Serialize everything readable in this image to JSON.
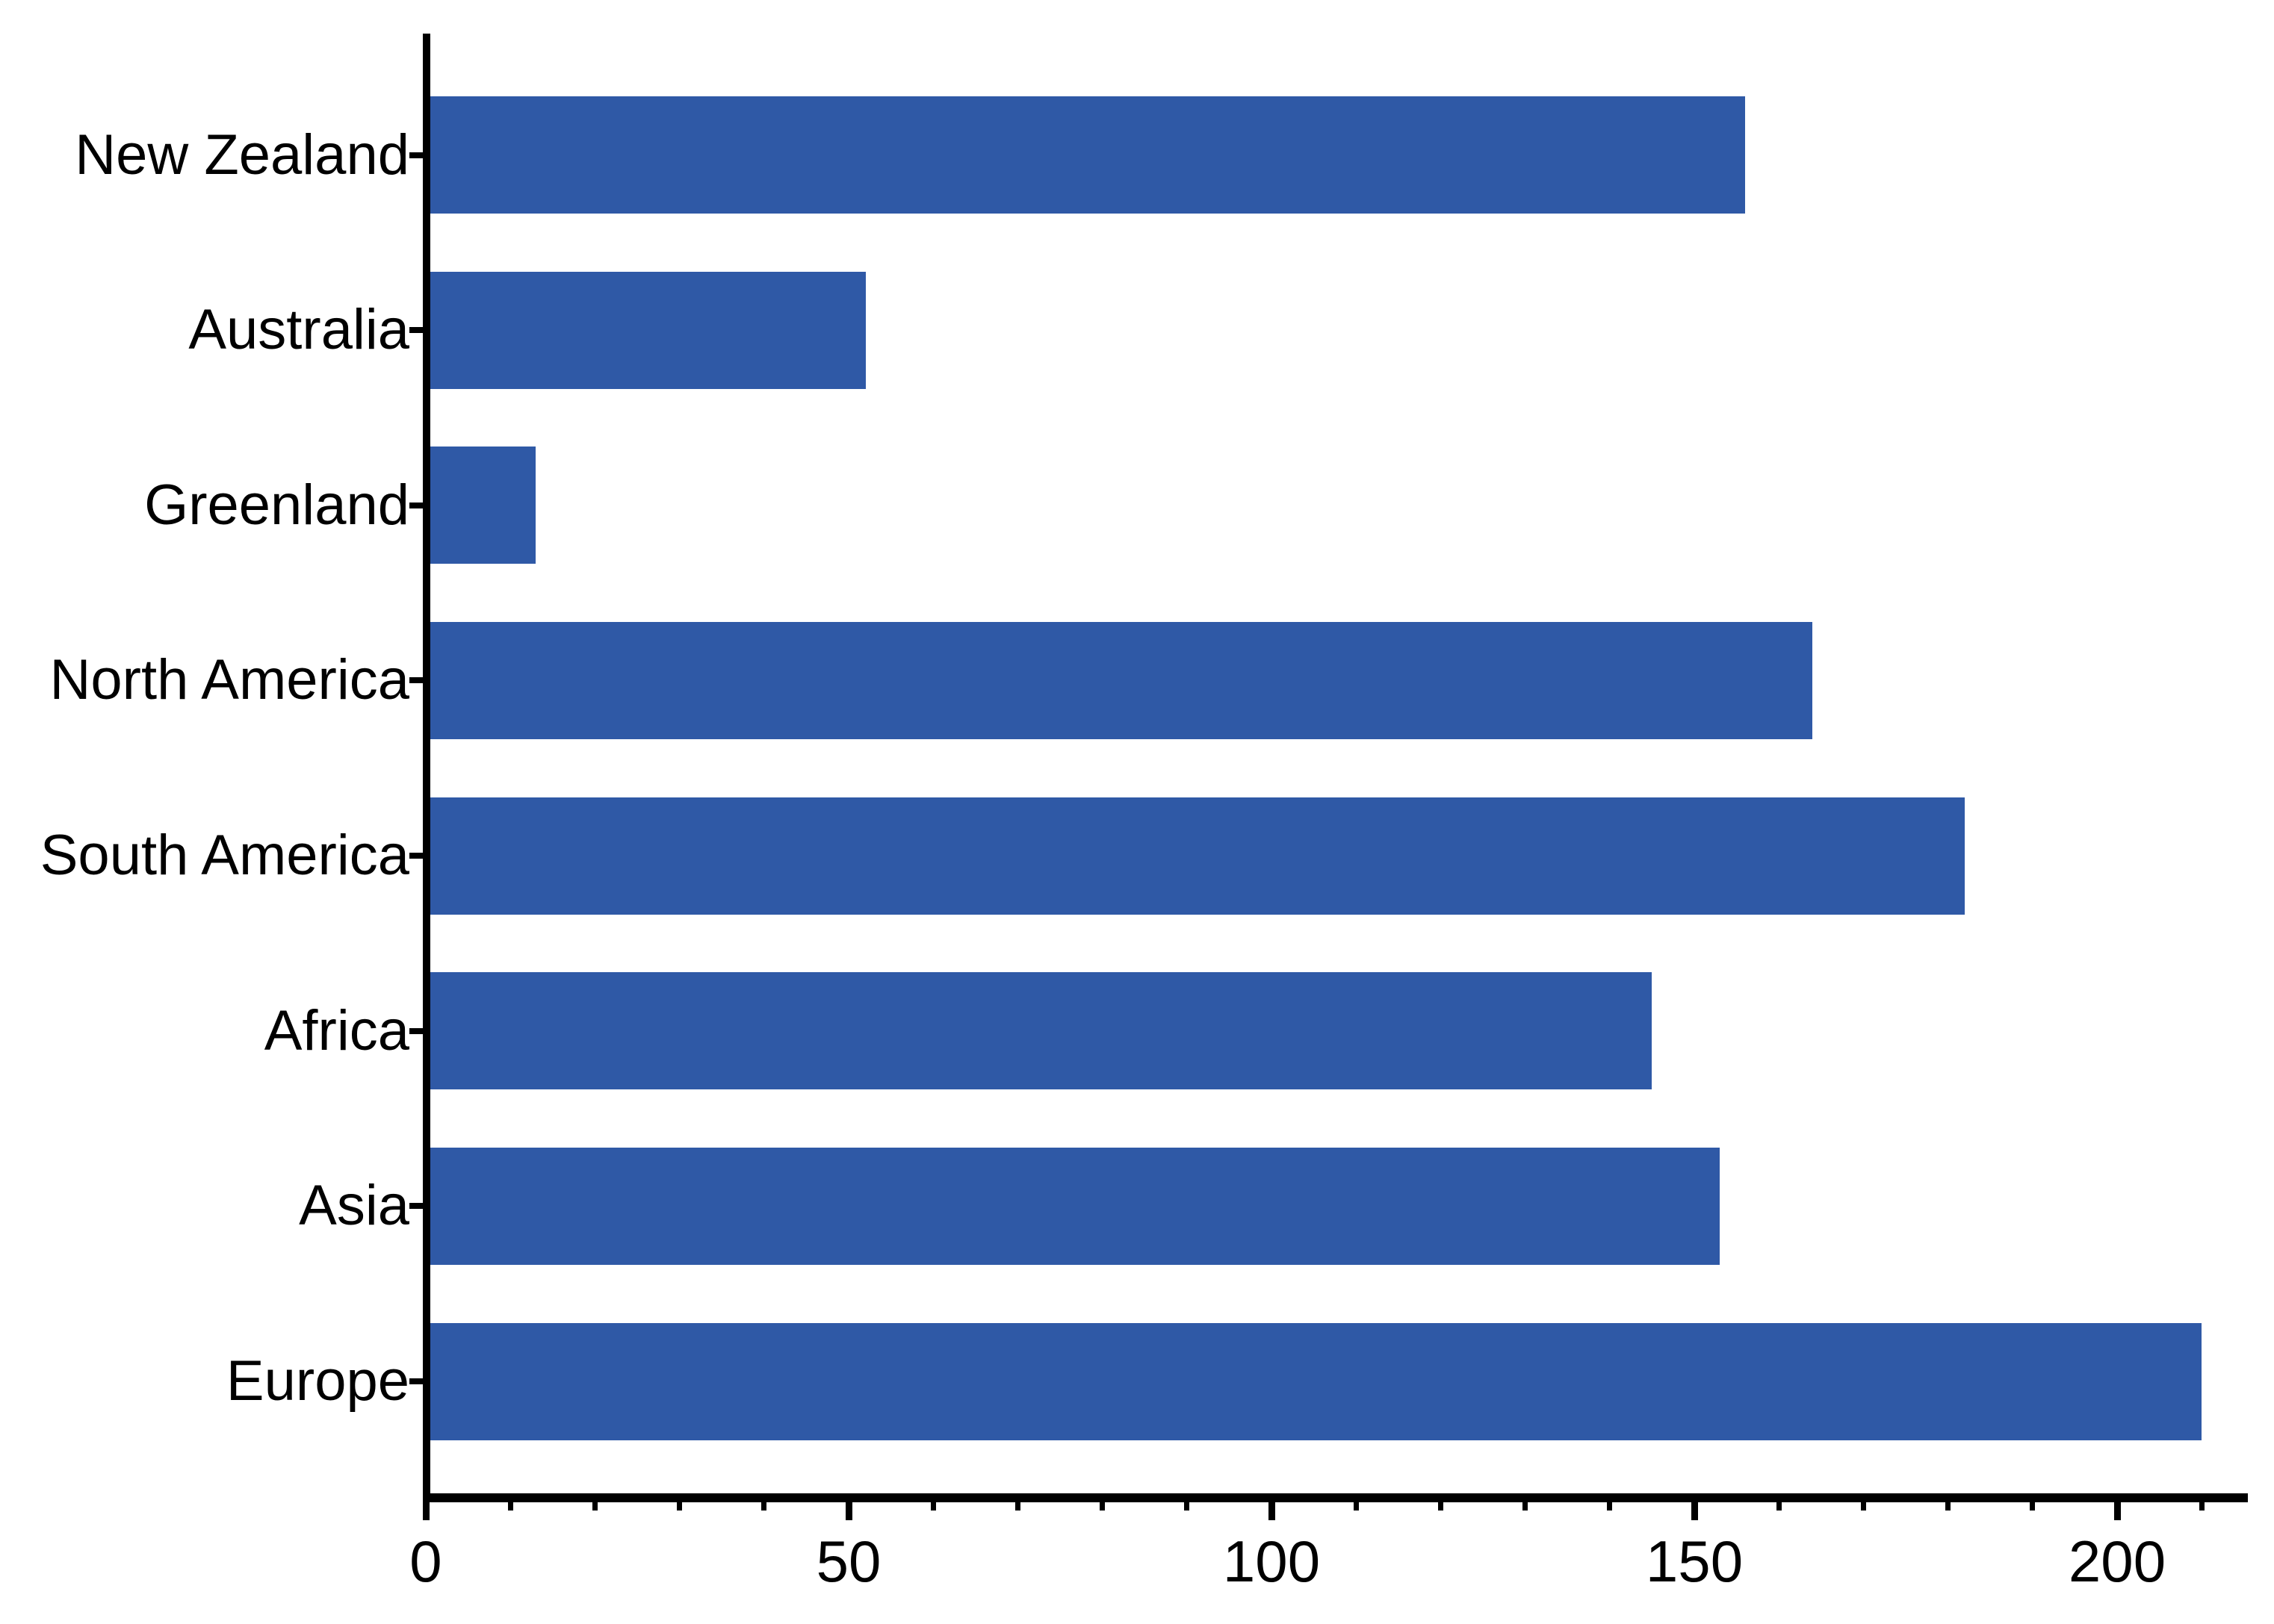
{
  "chart_data": {
    "type": "bar",
    "orientation": "horizontal",
    "title": "",
    "xlabel": "",
    "ylabel": "",
    "categories": [
      "New Zealand",
      "Australia",
      "Greenland",
      "North America",
      "South America",
      "Africa",
      "Asia",
      "Europe"
    ],
    "values": [
      156,
      52,
      13,
      164,
      182,
      145,
      153,
      210
    ],
    "xlim": [
      0,
      215.5
    ],
    "x_major_ticks": [
      0,
      50,
      100,
      150,
      200
    ],
    "x_minor_tick_step": 10,
    "x_minor_tick_max": 210,
    "grid": false,
    "legend": false,
    "bar_color": "#2F59A6",
    "axis_color": "#000000",
    "background_color": "#FFFFFF"
  }
}
